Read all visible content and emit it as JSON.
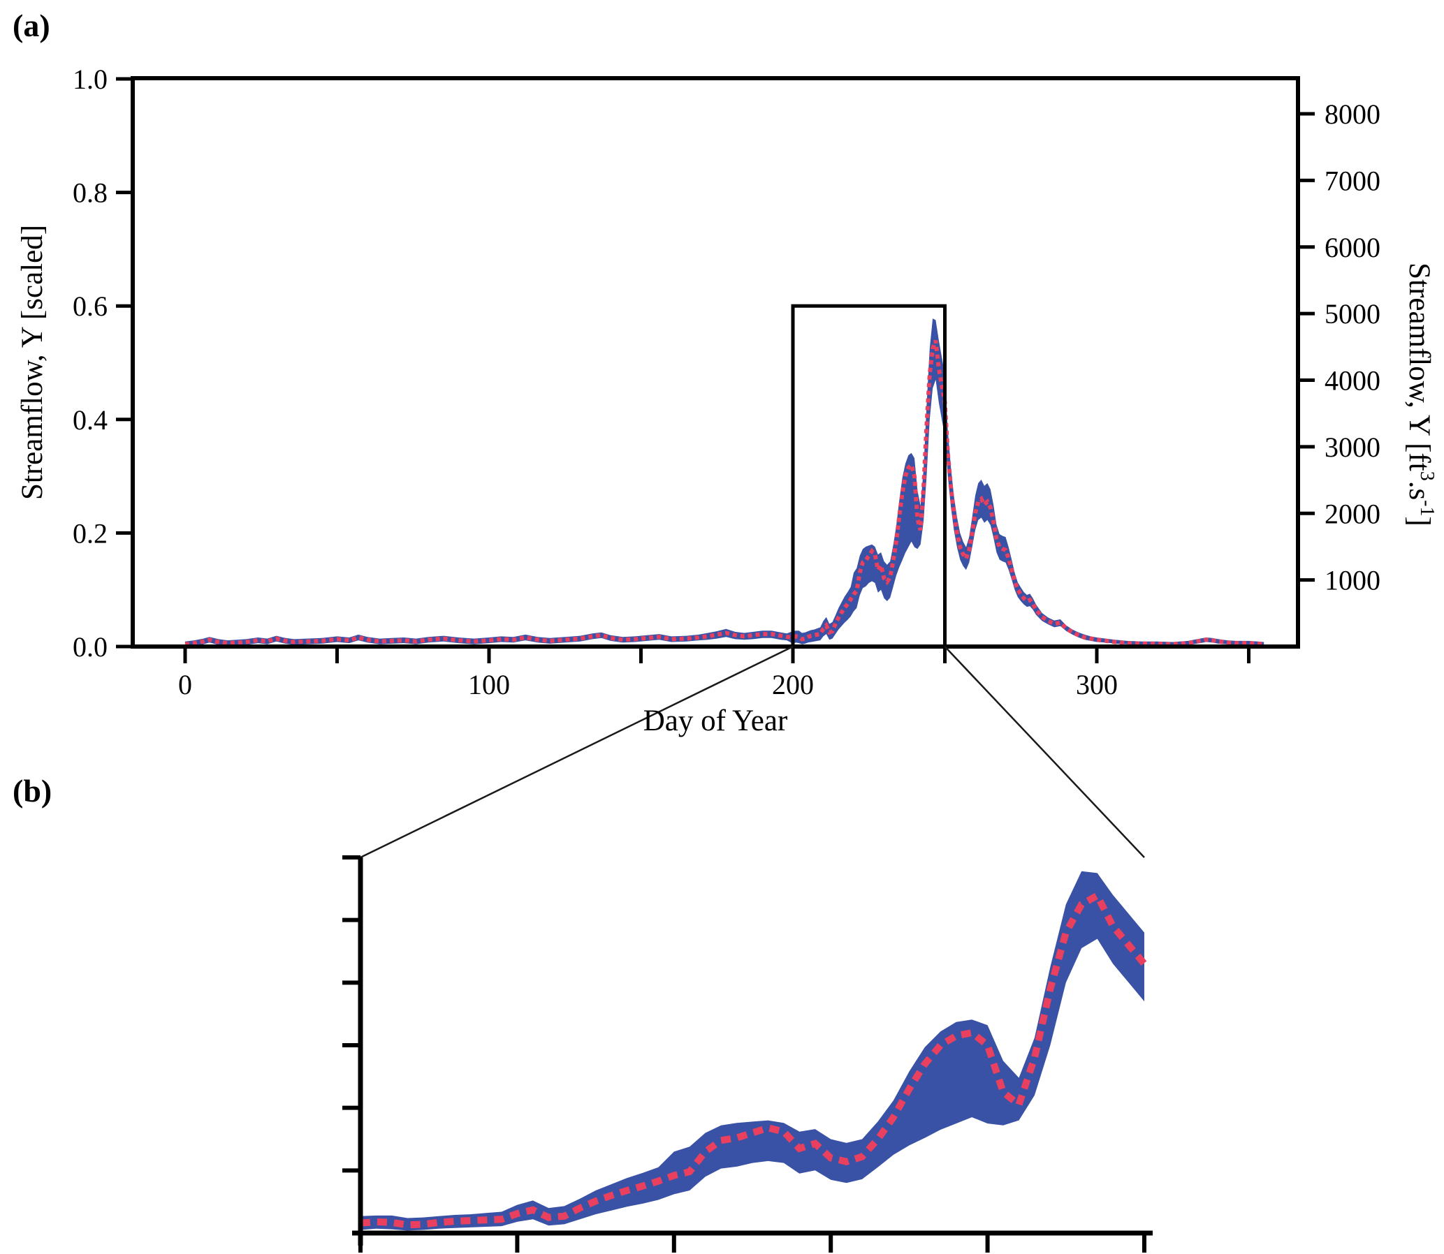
{
  "panels": {
    "a": {
      "label": "(a)"
    },
    "b": {
      "label": "(b)"
    }
  },
  "labels": {
    "xlabel": "Day of Year",
    "ylabel_left": "Streamflow, Y [scaled]",
    "ylabel_right_parts": [
      {
        "text": "Streamflow, Y [ft"
      },
      {
        "text": "3",
        "sup": true
      },
      {
        "text": ".s"
      },
      {
        "text": "-1",
        "sup": true
      },
      {
        "text": "]"
      }
    ]
  },
  "colors": {
    "band": "#3A52A5",
    "median": "#E8405E",
    "axis": "#000000",
    "connector": "#1a1a1a"
  },
  "chart_data": [
    {
      "id": "panel_a",
      "type": "area",
      "title": "",
      "xlabel": "Day of Year",
      "ylabel_left": "Streamflow, Y [scaled]",
      "ylabel_right": "Streamflow, Y [ft3.s-1]",
      "grid": false,
      "legend": "none",
      "xlim": [
        -17,
        367
      ],
      "ylim_left": [
        0.0,
        1.0
      ],
      "ylim_right": [
        0,
        8530
      ],
      "x_ticks_major": {
        "values": [
          0,
          100,
          200,
          300
        ],
        "labels": [
          "0",
          "100",
          "200",
          "300"
        ]
      },
      "x_ticks_minor": [
        50,
        150,
        250,
        350
      ],
      "y_ticks_left": {
        "values": [
          0.0,
          0.2,
          0.4,
          0.6,
          0.8,
          1.0
        ],
        "labels": [
          "0.0",
          "0.2",
          "0.4",
          "0.6",
          "0.8",
          "1.0"
        ]
      },
      "y_ticks_right": {
        "values": [
          1000,
          2000,
          3000,
          4000,
          5000,
          6000,
          7000,
          8000
        ],
        "labels": [
          "1000",
          "2000",
          "3000",
          "4000",
          "5000",
          "6000",
          "7000",
          "8000"
        ]
      },
      "zoom_box": {
        "x": [
          200,
          250
        ],
        "y": [
          0.0,
          0.6
        ]
      },
      "series_name": "daily streamflow median with uncertainty band",
      "points_format": [
        "day",
        "band_low",
        "median",
        "band_high"
      ],
      "points": [
        [
          0,
          0.001,
          0.004,
          0.009
        ],
        [
          3,
          0.001,
          0.006,
          0.011
        ],
        [
          6,
          0.004,
          0.009,
          0.014
        ],
        [
          8,
          0.007,
          0.012,
          0.017
        ],
        [
          11,
          0.003,
          0.008,
          0.013
        ],
        [
          14,
          0.001,
          0.006,
          0.011
        ],
        [
          17,
          0.002,
          0.007,
          0.012
        ],
        [
          20,
          0.003,
          0.008,
          0.013
        ],
        [
          24,
          0.006,
          0.011,
          0.016
        ],
        [
          27,
          0.004,
          0.009,
          0.014
        ],
        [
          30,
          0.009,
          0.014,
          0.019
        ],
        [
          33,
          0.005,
          0.01,
          0.015
        ],
        [
          36,
          0.003,
          0.008,
          0.013
        ],
        [
          40,
          0.004,
          0.009,
          0.014
        ],
        [
          45,
          0.005,
          0.01,
          0.015
        ],
        [
          50,
          0.008,
          0.013,
          0.018
        ],
        [
          54,
          0.006,
          0.011,
          0.016
        ],
        [
          57,
          0.011,
          0.016,
          0.021
        ],
        [
          60,
          0.007,
          0.012,
          0.017
        ],
        [
          64,
          0.004,
          0.009,
          0.014
        ],
        [
          68,
          0.005,
          0.01,
          0.015
        ],
        [
          72,
          0.006,
          0.011,
          0.016
        ],
        [
          76,
          0.004,
          0.009,
          0.014
        ],
        [
          80,
          0.007,
          0.012,
          0.017
        ],
        [
          85,
          0.009,
          0.014,
          0.019
        ],
        [
          90,
          0.006,
          0.011,
          0.016
        ],
        [
          95,
          0.004,
          0.009,
          0.014
        ],
        [
          100,
          0.006,
          0.011,
          0.016
        ],
        [
          104,
          0.008,
          0.013,
          0.018
        ],
        [
          108,
          0.007,
          0.012,
          0.017
        ],
        [
          112,
          0.011,
          0.016,
          0.021
        ],
        [
          116,
          0.007,
          0.012,
          0.017
        ],
        [
          120,
          0.005,
          0.01,
          0.015
        ],
        [
          125,
          0.007,
          0.012,
          0.017
        ],
        [
          130,
          0.009,
          0.014,
          0.019
        ],
        [
          134,
          0.013,
          0.018,
          0.023
        ],
        [
          137,
          0.015,
          0.02,
          0.025
        ],
        [
          140,
          0.01,
          0.015,
          0.02
        ],
        [
          144,
          0.007,
          0.012,
          0.017
        ],
        [
          148,
          0.008,
          0.013,
          0.018
        ],
        [
          152,
          0.01,
          0.015,
          0.02
        ],
        [
          156,
          0.012,
          0.017,
          0.022
        ],
        [
          160,
          0.008,
          0.013,
          0.018
        ],
        [
          165,
          0.009,
          0.014,
          0.019
        ],
        [
          169,
          0.011,
          0.016,
          0.021
        ],
        [
          172,
          0.012,
          0.018,
          0.024
        ],
        [
          175,
          0.014,
          0.021,
          0.027
        ],
        [
          178,
          0.017,
          0.024,
          0.031
        ],
        [
          181,
          0.013,
          0.02,
          0.026
        ],
        [
          184,
          0.012,
          0.018,
          0.024
        ],
        [
          187,
          0.013,
          0.02,
          0.026
        ],
        [
          190,
          0.015,
          0.022,
          0.028
        ],
        [
          193,
          0.015,
          0.022,
          0.028
        ],
        [
          196,
          0.012,
          0.019,
          0.025
        ],
        [
          198,
          0.011,
          0.017,
          0.023
        ],
        [
          200,
          0.005,
          0.016,
          0.027
        ],
        [
          201,
          0.007,
          0.018,
          0.028
        ],
        [
          202,
          0.006,
          0.017,
          0.028
        ],
        [
          203,
          0.004,
          0.013,
          0.024
        ],
        [
          204,
          0.005,
          0.014,
          0.025
        ],
        [
          205,
          0.007,
          0.017,
          0.027
        ],
        [
          206,
          0.008,
          0.019,
          0.029
        ],
        [
          207,
          0.009,
          0.02,
          0.03
        ],
        [
          208,
          0.01,
          0.021,
          0.032
        ],
        [
          209,
          0.011,
          0.022,
          0.034
        ],
        [
          210,
          0.018,
          0.031,
          0.045
        ],
        [
          211,
          0.022,
          0.037,
          0.052
        ],
        [
          212,
          0.012,
          0.025,
          0.04
        ],
        [
          213,
          0.014,
          0.027,
          0.043
        ],
        [
          214,
          0.022,
          0.04,
          0.055
        ],
        [
          215,
          0.03,
          0.051,
          0.068
        ],
        [
          216,
          0.036,
          0.06,
          0.078
        ],
        [
          217,
          0.042,
          0.068,
          0.088
        ],
        [
          218,
          0.047,
          0.075,
          0.096
        ],
        [
          219,
          0.053,
          0.083,
          0.105
        ],
        [
          220,
          0.062,
          0.092,
          0.13
        ],
        [
          221,
          0.068,
          0.098,
          0.138
        ],
        [
          222,
          0.09,
          0.13,
          0.16
        ],
        [
          223,
          0.103,
          0.148,
          0.172
        ],
        [
          224,
          0.106,
          0.152,
          0.176
        ],
        [
          225,
          0.112,
          0.16,
          0.178
        ],
        [
          226,
          0.115,
          0.168,
          0.18
        ],
        [
          227,
          0.112,
          0.162,
          0.176
        ],
        [
          228,
          0.095,
          0.135,
          0.162
        ],
        [
          229,
          0.1,
          0.143,
          0.166
        ],
        [
          230,
          0.085,
          0.12,
          0.15
        ],
        [
          231,
          0.08,
          0.114,
          0.144
        ],
        [
          232,
          0.086,
          0.122,
          0.15
        ],
        [
          233,
          0.105,
          0.15,
          0.178
        ],
        [
          234,
          0.125,
          0.185,
          0.212
        ],
        [
          235,
          0.14,
          0.23,
          0.258
        ],
        [
          236,
          0.152,
          0.27,
          0.297
        ],
        [
          237,
          0.165,
          0.3,
          0.322
        ],
        [
          238,
          0.175,
          0.315,
          0.337
        ],
        [
          239,
          0.185,
          0.32,
          0.341
        ],
        [
          240,
          0.175,
          0.3,
          0.332
        ],
        [
          241,
          0.172,
          0.225,
          0.275
        ],
        [
          242,
          0.18,
          0.205,
          0.248
        ],
        [
          243,
          0.22,
          0.28,
          0.312
        ],
        [
          244,
          0.3,
          0.39,
          0.425
        ],
        [
          245,
          0.4,
          0.48,
          0.525
        ],
        [
          246,
          0.455,
          0.525,
          0.578
        ],
        [
          247,
          0.47,
          0.539,
          0.575
        ],
        [
          248,
          0.43,
          0.49,
          0.54
        ],
        [
          249,
          0.4,
          0.46,
          0.51
        ],
        [
          250,
          0.37,
          0.43,
          0.48
        ],
        [
          251,
          0.3,
          0.34,
          0.38
        ],
        [
          252,
          0.245,
          0.28,
          0.315
        ],
        [
          253,
          0.205,
          0.235,
          0.265
        ],
        [
          254,
          0.175,
          0.2,
          0.228
        ],
        [
          255,
          0.153,
          0.175,
          0.2
        ],
        [
          256,
          0.142,
          0.163,
          0.185
        ],
        [
          257,
          0.135,
          0.155,
          0.175
        ],
        [
          258,
          0.148,
          0.17,
          0.193
        ],
        [
          259,
          0.175,
          0.2,
          0.228
        ],
        [
          260,
          0.205,
          0.235,
          0.266
        ],
        [
          261,
          0.223,
          0.255,
          0.288
        ],
        [
          262,
          0.227,
          0.26,
          0.294
        ],
        [
          263,
          0.218,
          0.25,
          0.283
        ],
        [
          264,
          0.223,
          0.255,
          0.288
        ],
        [
          265,
          0.214,
          0.245,
          0.277
        ],
        [
          266,
          0.192,
          0.22,
          0.25
        ],
        [
          267,
          0.166,
          0.19,
          0.215
        ],
        [
          268,
          0.153,
          0.175,
          0.198
        ],
        [
          269,
          0.15,
          0.172,
          0.195
        ],
        [
          270,
          0.148,
          0.17,
          0.193
        ],
        [
          271,
          0.135,
          0.155,
          0.175
        ],
        [
          272,
          0.118,
          0.135,
          0.153
        ],
        [
          273,
          0.1,
          0.115,
          0.13
        ],
        [
          274,
          0.087,
          0.1,
          0.113
        ],
        [
          275,
          0.08,
          0.092,
          0.104
        ],
        [
          276,
          0.074,
          0.085,
          0.096
        ],
        [
          277,
          0.07,
          0.08,
          0.091
        ],
        [
          278,
          0.071,
          0.082,
          0.093
        ],
        [
          279,
          0.065,
          0.075,
          0.085
        ],
        [
          280,
          0.056,
          0.065,
          0.074
        ],
        [
          282,
          0.045,
          0.052,
          0.059
        ],
        [
          284,
          0.039,
          0.045,
          0.051
        ],
        [
          286,
          0.034,
          0.04,
          0.046
        ],
        [
          288,
          0.036,
          0.042,
          0.048
        ],
        [
          290,
          0.027,
          0.032,
          0.037
        ],
        [
          292,
          0.021,
          0.025,
          0.03
        ],
        [
          294,
          0.016,
          0.02,
          0.025
        ],
        [
          296,
          0.012,
          0.016,
          0.021
        ],
        [
          298,
          0.01,
          0.014,
          0.018
        ],
        [
          300,
          0.008,
          0.012,
          0.016
        ],
        [
          303,
          0.007,
          0.01,
          0.014
        ],
        [
          306,
          0.005,
          0.008,
          0.012
        ],
        [
          310,
          0.004,
          0.006,
          0.01
        ],
        [
          315,
          0.003,
          0.005,
          0.009
        ],
        [
          320,
          0.003,
          0.005,
          0.009
        ],
        [
          325,
          0.002,
          0.004,
          0.008
        ],
        [
          330,
          0.003,
          0.006,
          0.01
        ],
        [
          333,
          0.005,
          0.009,
          0.013
        ],
        [
          336,
          0.008,
          0.012,
          0.016
        ],
        [
          338,
          0.007,
          0.011,
          0.015
        ],
        [
          340,
          0.005,
          0.009,
          0.013
        ],
        [
          343,
          0.004,
          0.007,
          0.011
        ],
        [
          346,
          0.003,
          0.006,
          0.01
        ],
        [
          350,
          0.003,
          0.006,
          0.01
        ],
        [
          353,
          0.002,
          0.005,
          0.009
        ],
        [
          355,
          0.002,
          0.004,
          0.008
        ]
      ]
    },
    {
      "id": "panel_b",
      "type": "area",
      "description": "magnified view of zoom_box region of panel_a (days 200-250, scaled flow 0-0.6)",
      "grid": false,
      "legend": "none",
      "xlim": [
        200,
        250
      ],
      "ylim": [
        0.0,
        0.6
      ],
      "x_ticks": [
        200,
        210,
        220,
        230,
        240,
        250
      ],
      "y_ticks": [
        0.1,
        0.2,
        0.3,
        0.4,
        0.5,
        0.6
      ],
      "tick_labels_visible": false,
      "series_source": "subset of panel_a points with 200 <= day <= 250"
    }
  ]
}
